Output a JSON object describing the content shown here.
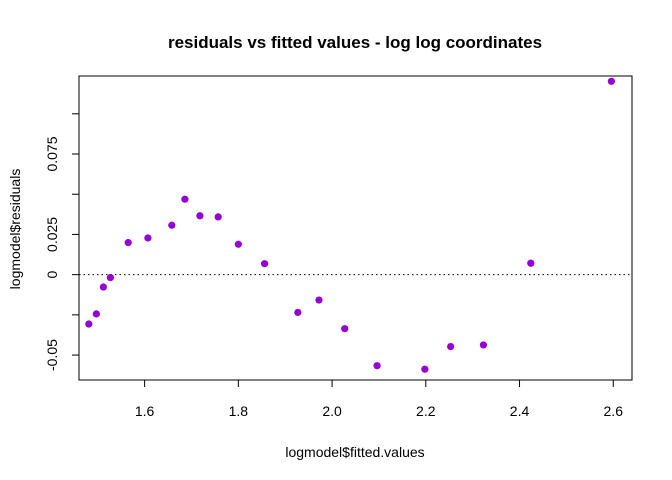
{
  "chart_data": {
    "type": "scatter",
    "title": "residuals vs fitted values - log log coordinates",
    "xlabel": "logmodel$fitted.values",
    "ylabel": "logmodel$residuals",
    "xlim": [
      1.46,
      2.64
    ],
    "ylim": [
      -0.0655,
      0.1235
    ],
    "x_ticks": [
      1.6,
      1.8,
      2.0,
      2.2,
      2.4,
      2.6
    ],
    "x_tick_labels": [
      "1.6",
      "1.8",
      "2.0",
      "2.2",
      "2.4",
      "2.6"
    ],
    "y_ticks": [
      -0.05,
      -0.025,
      0,
      0.025,
      0.05,
      0.075,
      0.1
    ],
    "y_tick_labels": [
      "-0.05",
      "",
      "0",
      "0.025",
      "",
      "0.075",
      ""
    ],
    "reference_line": {
      "y": 0,
      "style": "dotted"
    },
    "point_color": "#9400D3",
    "grid": false,
    "legend": "none",
    "points": [
      {
        "x": 1.481,
        "y": -0.0307
      },
      {
        "x": 1.497,
        "y": -0.0244
      },
      {
        "x": 1.512,
        "y": -0.0077
      },
      {
        "x": 1.527,
        "y": -0.0018
      },
      {
        "x": 1.565,
        "y": 0.0199
      },
      {
        "x": 1.607,
        "y": 0.0228
      },
      {
        "x": 1.658,
        "y": 0.0307
      },
      {
        "x": 1.686,
        "y": 0.0469
      },
      {
        "x": 1.718,
        "y": 0.0366
      },
      {
        "x": 1.757,
        "y": 0.0359
      },
      {
        "x": 1.8,
        "y": 0.0189
      },
      {
        "x": 1.856,
        "y": 0.0068
      },
      {
        "x": 1.927,
        "y": -0.0235
      },
      {
        "x": 1.972,
        "y": -0.0158
      },
      {
        "x": 2.027,
        "y": -0.0336
      },
      {
        "x": 2.096,
        "y": -0.0566
      },
      {
        "x": 2.198,
        "y": -0.0588
      },
      {
        "x": 2.253,
        "y": -0.0447
      },
      {
        "x": 2.323,
        "y": -0.0437
      },
      {
        "x": 2.424,
        "y": 0.0071
      },
      {
        "x": 2.596,
        "y": 0.1202
      }
    ]
  }
}
